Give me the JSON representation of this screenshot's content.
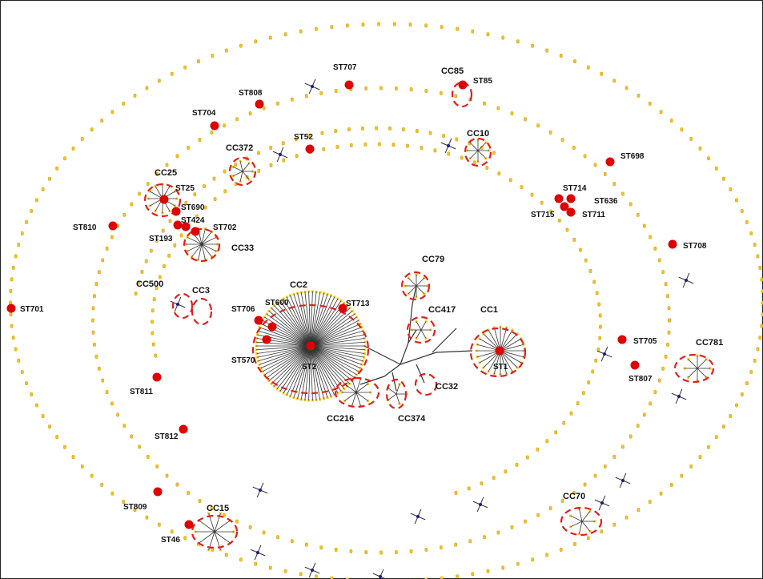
{
  "colors": {
    "dot": "#f5c518",
    "dot_edge": "#b8860b",
    "st_node": "#e00000",
    "cc_ring": "#e02020",
    "edge": "#333333",
    "hub": "#1a1a8a",
    "frame": "#222222"
  },
  "cc_labels": [
    "CC85",
    "CC10",
    "CC372",
    "CC25",
    "CC33",
    "CC79",
    "CC500",
    "CC3",
    "CC2",
    "CC417",
    "CC1",
    "CC781",
    "CC32",
    "CC216",
    "CC374",
    "CC70",
    "CC15"
  ],
  "st_labels": [
    "ST707",
    "ST85",
    "ST808",
    "ST704",
    "ST52",
    "ST698",
    "ST25",
    "ST714",
    "ST636",
    "ST715",
    "ST711",
    "ST690",
    "ST424",
    "ST702",
    "ST810",
    "ST193",
    "ST708",
    "ST701",
    "ST713",
    "ST706",
    "ST600",
    "ST570",
    "ST2",
    "ST1",
    "ST705",
    "ST807",
    "ST811",
    "ST812",
    "ST809",
    "ST46"
  ]
}
